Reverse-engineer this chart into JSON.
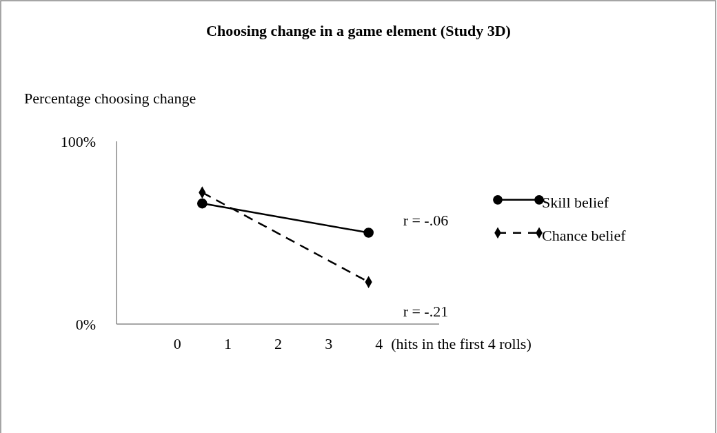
{
  "chart_data": {
    "type": "line",
    "title": "Choosing change in a game element (Study 3D)",
    "ylabel": "Percentage choosing change",
    "xlabel": "(hits in the first 4 rolls)",
    "x": [
      0.5,
      3.8
    ],
    "xlim": [
      -1.2,
      5.2
    ],
    "xticks": [
      0,
      1,
      2,
      3,
      4
    ],
    "ylim": [
      0,
      100
    ],
    "yticks": [
      {
        "value": 0,
        "label": "0%"
      },
      {
        "value": 100,
        "label": "100%"
      }
    ],
    "series": [
      {
        "name": "Skill belief",
        "color": "#000000",
        "values": [
          66,
          50
        ],
        "marker": "circle",
        "line_style": "solid"
      },
      {
        "name": "Chance belief",
        "color": "#000000",
        "values": [
          72,
          23
        ],
        "marker": "diamond",
        "line_style": "dashed"
      }
    ],
    "annotations": [
      "r = -.06",
      "r = -.21"
    ],
    "legend": "right",
    "grid": false
  }
}
